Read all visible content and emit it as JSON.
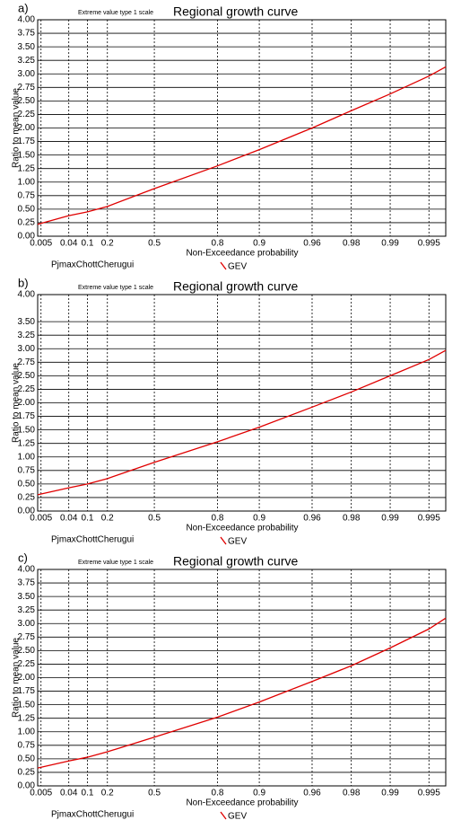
{
  "chart_data": [
    {
      "type": "line",
      "panel_label": "a)",
      "subtitle": "Extreme value type 1 scale",
      "title": "Regional growth curve",
      "x_label": "Non-Exceedance probability",
      "y_label": "Ratio to mean value",
      "site_label": "PjmaxChottCherugui",
      "xscale": "gumbel",
      "grid": true,
      "xlim": [
        0.0036,
        0.9963
      ],
      "xticks": [
        0.005,
        0.04,
        0.1,
        0.2,
        0.5,
        0.8,
        0.9,
        0.96,
        0.98,
        0.99,
        0.995
      ],
      "ylim": [
        0,
        4
      ],
      "yticks": [
        {
          "value": 0,
          "label": "0.00"
        },
        {
          "value": 0.25,
          "label": "0.25"
        },
        {
          "value": 0.5,
          "label": "0.50"
        },
        {
          "value": 0.75,
          "label": "0.75"
        },
        {
          "value": 1,
          "label": "1.00"
        },
        {
          "value": 1.25,
          "label": "1.25"
        },
        {
          "value": 1.5,
          "label": "1.50"
        },
        {
          "value": 1.75,
          "label": "1.75"
        },
        {
          "value": 2,
          "label": "2.00"
        },
        {
          "value": 2.25,
          "label": "2.25"
        },
        {
          "value": 2.5,
          "label": "2.50"
        },
        {
          "value": 2.75,
          "label": "2.75"
        },
        {
          "value": 3,
          "label": "3.00"
        },
        {
          "value": 3.25,
          "label": "3.25"
        },
        {
          "value": 3.5,
          "label": "3.50"
        },
        {
          "value": 3.75,
          "label": "3.75"
        },
        {
          "value": 4,
          "label": "4.00"
        }
      ],
      "series": [
        {
          "name": "GEV",
          "color": "#e00000",
          "x": [
            0.0036,
            0.04,
            0.1,
            0.2,
            0.5,
            0.8,
            0.9,
            0.96,
            0.98,
            0.99,
            0.995,
            0.9963
          ],
          "values": [
            0.22,
            0.38,
            0.45,
            0.55,
            0.88,
            1.3,
            1.6,
            2.0,
            2.32,
            2.63,
            2.96,
            3.13
          ]
        }
      ]
    },
    {
      "type": "line",
      "panel_label": "b)",
      "subtitle": "Extreme value type 1 scale",
      "title": "Regional growth curve",
      "x_label": "Non-Exceedance probability",
      "y_label": "Ratio to mean value",
      "site_label": "PjmaxChottCherugui",
      "xscale": "gumbel",
      "grid": true,
      "xlim": [
        0.0036,
        0.9963
      ],
      "xticks": [
        0.005,
        0.04,
        0.1,
        0.2,
        0.5,
        0.8,
        0.9,
        0.96,
        0.98,
        0.99,
        0.995
      ],
      "ylim": [
        0,
        4
      ],
      "yticks": [
        {
          "value": 0,
          "label": "0.00"
        },
        {
          "value": 0.25,
          "label": "0.25"
        },
        {
          "value": 0.5,
          "label": "0.50"
        },
        {
          "value": 0.75,
          "label": "0.75"
        },
        {
          "value": 1,
          "label": "1.00"
        },
        {
          "value": 1.25,
          "label": "1.25"
        },
        {
          "value": 1.5,
          "label": "1.50"
        },
        {
          "value": 1.75,
          "label": "1.75"
        },
        {
          "value": 2,
          "label": "2.00"
        },
        {
          "value": 2.25,
          "label": "2.25"
        },
        {
          "value": 2.5,
          "label": "2.50"
        },
        {
          "value": 2.75,
          "label": "2.75"
        },
        {
          "value": 3,
          "label": "3.00"
        },
        {
          "value": 3.25,
          "label": "3.25"
        },
        {
          "value": 3.5,
          "label": "3.50"
        },
        {
          "value": 4,
          "label": "4.00"
        }
      ],
      "series": [
        {
          "name": "GEV",
          "color": "#e00000",
          "x": [
            0.0036,
            0.04,
            0.1,
            0.2,
            0.5,
            0.8,
            0.9,
            0.96,
            0.98,
            0.99,
            0.995,
            0.9963
          ],
          "values": [
            0.3,
            0.43,
            0.5,
            0.6,
            0.9,
            1.28,
            1.55,
            1.92,
            2.2,
            2.5,
            2.8,
            2.97
          ]
        }
      ]
    },
    {
      "type": "line",
      "panel_label": "c)",
      "subtitle": "Extreme value type 1 scale",
      "title": "Regional growth curve",
      "x_label": "Non-Exceedance probability",
      "y_label": "Ratio to mean value",
      "site_label": "PjmaxChottCherugui",
      "xscale": "gumbel",
      "grid": true,
      "xlim": [
        0.0036,
        0.9963
      ],
      "xticks": [
        0.005,
        0.04,
        0.1,
        0.2,
        0.5,
        0.8,
        0.9,
        0.96,
        0.98,
        0.99,
        0.995
      ],
      "ylim": [
        0,
        4
      ],
      "yticks": [
        {
          "value": 0,
          "label": "0.00"
        },
        {
          "value": 0.25,
          "label": "0.25"
        },
        {
          "value": 0.5,
          "label": "0.50"
        },
        {
          "value": 0.75,
          "label": "0.75"
        },
        {
          "value": 1,
          "label": "1.00"
        },
        {
          "value": 1.25,
          "label": "1.25"
        },
        {
          "value": 1.5,
          "label": "1.50"
        },
        {
          "value": 1.75,
          "label": "1.75"
        },
        {
          "value": 2,
          "label": "2.00"
        },
        {
          "value": 2.25,
          "label": "2.25"
        },
        {
          "value": 2.5,
          "label": "2.50"
        },
        {
          "value": 2.75,
          "label": "2.75"
        },
        {
          "value": 3,
          "label": "3.00"
        },
        {
          "value": 3.25,
          "label": "3.25"
        },
        {
          "value": 3.5,
          "label": "3.50"
        },
        {
          "value": 3.75,
          "label": "3.75"
        },
        {
          "value": 4,
          "label": "4.00"
        }
      ],
      "series": [
        {
          "name": "GEV",
          "color": "#e00000",
          "x": [
            0.0036,
            0.04,
            0.1,
            0.2,
            0.5,
            0.8,
            0.9,
            0.96,
            0.98,
            0.99,
            0.995,
            0.9963
          ],
          "values": [
            0.33,
            0.46,
            0.53,
            0.63,
            0.9,
            1.27,
            1.55,
            1.93,
            2.22,
            2.55,
            2.9,
            3.1
          ]
        }
      ]
    }
  ]
}
